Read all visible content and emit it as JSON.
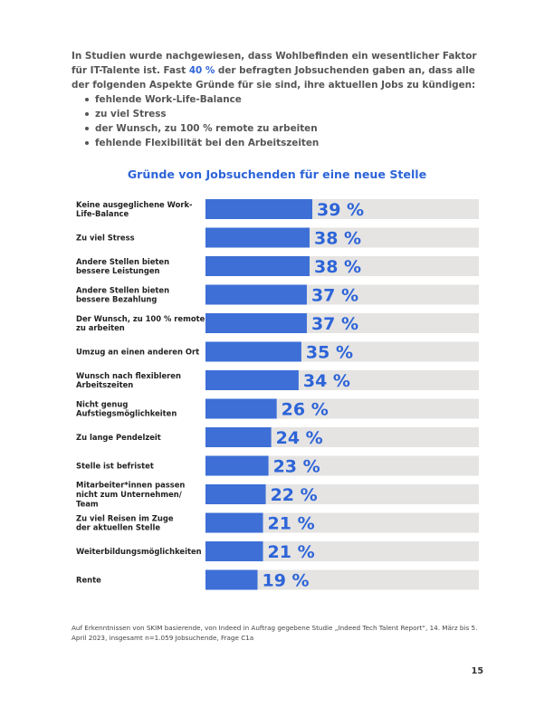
{
  "intro": {
    "line_before": "In Studien wurde nachgewiesen, dass Wohlbefinden ein wesentlicher Faktor für IT-Talente ist. Fast ",
    "highlight": "40 %",
    "line_after": " der befragten Jobsuchenden gaben an, dass alle der folgenden Aspekte Gründe für sie sind, ihre aktuellen Jobs zu kündigen:",
    "bullets": [
      "fehlende Work-Life-Balance",
      "zu viel Stress",
      "der Wunsch, zu 100 % remote zu arbeiten",
      "fehlende Flexibilität bei den Arbeitszeiten"
    ]
  },
  "colors": {
    "bar": "#3d6fd6",
    "track": "#e5e4e3",
    "accent": "#2d64d8"
  },
  "chart_data": {
    "type": "bar",
    "orientation": "horizontal",
    "title": "Gründe von Jobsuchenden für eine neue Stelle",
    "categories": [
      [
        "Keine ausgeglichene Work-",
        "Life-Balance"
      ],
      [
        "Zu viel Stress"
      ],
      [
        "Andere Stellen bieten",
        "bessere Leistungen"
      ],
      [
        "Andere Stellen bieten",
        "bessere Bezahlung"
      ],
      [
        "Der Wunsch, zu 100 % remote",
        "zu arbeiten"
      ],
      [
        "Umzug an einen anderen Ort"
      ],
      [
        "Wunsch nach flexibleren",
        "Arbeitszeiten"
      ],
      [
        "Nicht genug",
        "Aufstiegsmöglichkeiten"
      ],
      [
        "Zu lange Pendelzeit"
      ],
      [
        "Stelle ist befristet"
      ],
      [
        "Mitarbeiter*innen passen",
        "nicht zum Unternehmen/",
        "Team"
      ],
      [
        "Zu viel Reisen im Zuge",
        "der aktuellen Stelle"
      ],
      [
        "Weiterbildungsmöglichkeiten"
      ],
      [
        "Rente"
      ]
    ],
    "values": [
      39,
      38,
      38,
      37,
      37,
      35,
      34,
      26,
      24,
      23,
      22,
      21,
      21,
      19
    ],
    "value_labels": [
      "39 %",
      "38 %",
      "38 %",
      "37 %",
      "37 %",
      "35 %",
      "34 %",
      "26 %",
      "24 %",
      "23 %",
      "22 %",
      "21 %",
      "21 %",
      "19 %"
    ],
    "unit": "%",
    "xlim": [
      0,
      100
    ],
    "grid": false,
    "legend": "none"
  },
  "footnote": "Auf Erkenntnissen von SKIM basierende, von Indeed in Auftrag gegebene Studie „Indeed Tech Talent Report“, 14. März bis 5. April 2023, insgesamt n=1.059 Jobsuchende, Frage C1a",
  "page_number": "15"
}
